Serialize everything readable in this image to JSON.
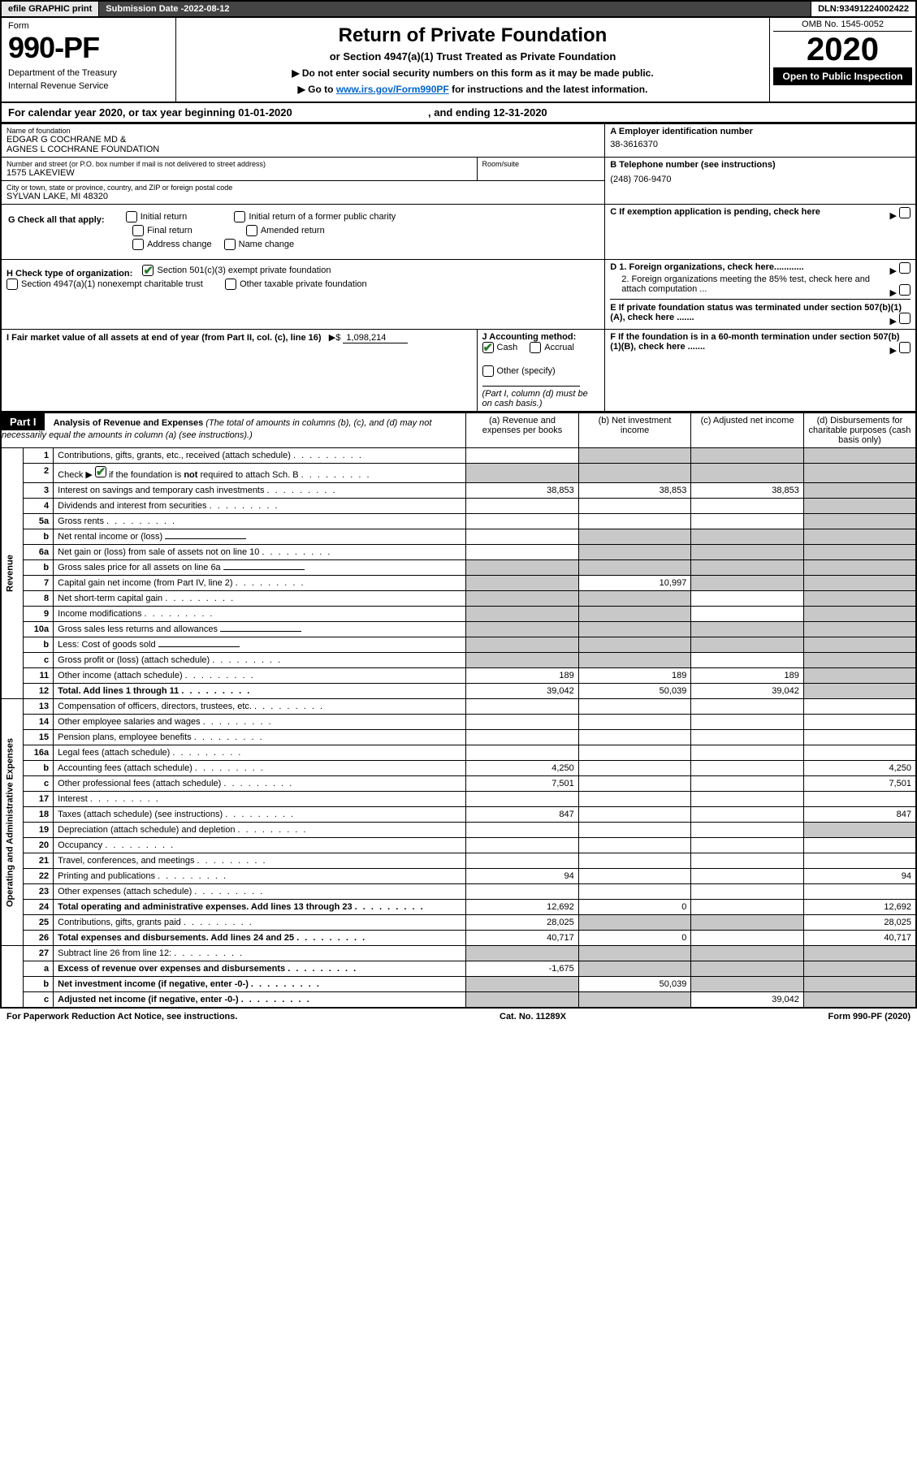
{
  "topbar": {
    "efile": "efile GRAPHIC print",
    "submission_label": "Submission Date - ",
    "submission_date": "2022-08-12",
    "dln_label": "DLN: ",
    "dln": "93491224002422"
  },
  "header": {
    "form_label": "Form",
    "form_number": "990-PF",
    "dept1": "Department of the Treasury",
    "dept2": "Internal Revenue Service",
    "title": "Return of Private Foundation",
    "subtitle": "or Section 4947(a)(1) Trust Treated as Private Foundation",
    "instr1": "▶ Do not enter social security numbers on this form as it may be made public.",
    "instr2_pre": "▶ Go to ",
    "instr2_link": "www.irs.gov/Form990PF",
    "instr2_post": " for instructions and the latest information.",
    "omb": "OMB No. 1545-0052",
    "year": "2020",
    "open_public": "Open to Public Inspection"
  },
  "cal_year": {
    "prefix": "For calendar year 2020, or tax year beginning ",
    "begin": "01-01-2020",
    "mid": " , and ending ",
    "end": "12-31-2020"
  },
  "entity": {
    "name_label": "Name of foundation",
    "name1": "EDGAR G COCHRANE MD &",
    "name2": "AGNES L COCHRANE FOUNDATION",
    "addr_label": "Number and street (or P.O. box number if mail is not delivered to street address)",
    "addr": "1575 LAKEVIEW",
    "room_label": "Room/suite",
    "city_label": "City or town, state or province, country, and ZIP or foreign postal code",
    "city": "SYLVAN LAKE, MI  48320",
    "ein_label": "A Employer identification number",
    "ein": "38-3616370",
    "phone_label": "B Telephone number (see instructions)",
    "phone": "(248) 706-9470",
    "c_label": "C If exemption application is pending, check here"
  },
  "checks": {
    "g_label": "G Check all that apply:",
    "g_items": [
      "Initial return",
      "Final return",
      "Address change",
      "Initial return of a former public charity",
      "Amended return",
      "Name change"
    ],
    "h_label": "H Check type of organization:",
    "h_501c3": "Section 501(c)(3) exempt private foundation",
    "h_4947": "Section 4947(a)(1) nonexempt charitable trust",
    "h_other_tax": "Other taxable private foundation",
    "i_label": "I Fair market value of all assets at end of year (from Part II, col. (c), line 16)",
    "i_value": "1,098,214",
    "j_label": "J Accounting method:",
    "j_cash": "Cash",
    "j_accrual": "Accrual",
    "j_other": "Other (specify)",
    "j_note": "(Part I, column (d) must be on cash basis.)",
    "d1": "D 1. Foreign organizations, check here............",
    "d2": "2. Foreign organizations meeting the 85% test, check here and attach computation ...",
    "e": "E  If private foundation status was terminated under section 507(b)(1)(A), check here .......",
    "f": "F  If the foundation is in a 60-month termination under section 507(b)(1)(B), check here .......",
    "arrow": "▶"
  },
  "part1": {
    "label": "Part I",
    "title": "Analysis of Revenue and Expenses",
    "title_note": " (The total of amounts in columns (b), (c), and (d) may not necessarily equal the amounts in column (a) (see instructions).)",
    "col_a": "(a)  Revenue and expenses per books",
    "col_b": "(b)  Net investment income",
    "col_c": "(c)  Adjusted net income",
    "col_d": "(d)  Disbursements for charitable purposes (cash basis only)"
  },
  "sections": {
    "revenue": "Revenue",
    "opex": "Operating and Administrative Expenses"
  },
  "rows": [
    {
      "n": "1",
      "desc": "Contributions, gifts, grants, etc., received (attach schedule)",
      "a": "",
      "b": "shaded",
      "c": "shaded",
      "d": "shaded"
    },
    {
      "n": "2",
      "desc": "Check ▶ [x] if the foundation is not required to attach Sch. B",
      "a": "shaded",
      "b": "shaded",
      "c": "shaded",
      "d": "shaded",
      "hascheck": true
    },
    {
      "n": "3",
      "desc": "Interest on savings and temporary cash investments",
      "a": "38,853",
      "b": "38,853",
      "c": "38,853",
      "d": "shaded"
    },
    {
      "n": "4",
      "desc": "Dividends and interest from securities",
      "a": "",
      "b": "",
      "c": "",
      "d": "shaded"
    },
    {
      "n": "5a",
      "desc": "Gross rents",
      "a": "",
      "b": "",
      "c": "",
      "d": "shaded"
    },
    {
      "n": "b",
      "desc": "Net rental income or (loss)",
      "a": "",
      "b": "shaded",
      "c": "shaded",
      "d": "shaded",
      "inline_field": true
    },
    {
      "n": "6a",
      "desc": "Net gain or (loss) from sale of assets not on line 10",
      "a": "",
      "b": "shaded",
      "c": "shaded",
      "d": "shaded"
    },
    {
      "n": "b",
      "desc": "Gross sales price for all assets on line 6a",
      "a": "shaded",
      "b": "shaded",
      "c": "shaded",
      "d": "shaded",
      "inline_field": true
    },
    {
      "n": "7",
      "desc": "Capital gain net income (from Part IV, line 2)",
      "a": "shaded",
      "b": "10,997",
      "c": "shaded",
      "d": "shaded"
    },
    {
      "n": "8",
      "desc": "Net short-term capital gain",
      "a": "shaded",
      "b": "shaded",
      "c": "",
      "d": "shaded"
    },
    {
      "n": "9",
      "desc": "Income modifications",
      "a": "shaded",
      "b": "shaded",
      "c": "",
      "d": "shaded"
    },
    {
      "n": "10a",
      "desc": "Gross sales less returns and allowances",
      "a": "shaded",
      "b": "shaded",
      "c": "shaded",
      "d": "shaded",
      "inline_field": true
    },
    {
      "n": "b",
      "desc": "Less: Cost of goods sold",
      "a": "shaded",
      "b": "shaded",
      "c": "shaded",
      "d": "shaded",
      "inline_field": true
    },
    {
      "n": "c",
      "desc": "Gross profit or (loss) (attach schedule)",
      "a": "shaded",
      "b": "shaded",
      "c": "",
      "d": "shaded"
    },
    {
      "n": "11",
      "desc": "Other income (attach schedule)",
      "a": "189",
      "b": "189",
      "c": "189",
      "d": "shaded"
    },
    {
      "n": "12",
      "desc": "Total. Add lines 1 through 11",
      "a": "39,042",
      "b": "50,039",
      "c": "39,042",
      "d": "shaded",
      "bold": true
    }
  ],
  "rows2": [
    {
      "n": "13",
      "desc": "Compensation of officers, directors, trustees, etc.",
      "a": "",
      "b": "",
      "c": "",
      "d": ""
    },
    {
      "n": "14",
      "desc": "Other employee salaries and wages",
      "a": "",
      "b": "",
      "c": "",
      "d": ""
    },
    {
      "n": "15",
      "desc": "Pension plans, employee benefits",
      "a": "",
      "b": "",
      "c": "",
      "d": ""
    },
    {
      "n": "16a",
      "desc": "Legal fees (attach schedule)",
      "a": "",
      "b": "",
      "c": "",
      "d": ""
    },
    {
      "n": "b",
      "desc": "Accounting fees (attach schedule)",
      "a": "4,250",
      "b": "",
      "c": "",
      "d": "4,250"
    },
    {
      "n": "c",
      "desc": "Other professional fees (attach schedule)",
      "a": "7,501",
      "b": "",
      "c": "",
      "d": "7,501"
    },
    {
      "n": "17",
      "desc": "Interest",
      "a": "",
      "b": "",
      "c": "",
      "d": ""
    },
    {
      "n": "18",
      "desc": "Taxes (attach schedule) (see instructions)",
      "a": "847",
      "b": "",
      "c": "",
      "d": "847"
    },
    {
      "n": "19",
      "desc": "Depreciation (attach schedule) and depletion",
      "a": "",
      "b": "",
      "c": "",
      "d": "shaded"
    },
    {
      "n": "20",
      "desc": "Occupancy",
      "a": "",
      "b": "",
      "c": "",
      "d": ""
    },
    {
      "n": "21",
      "desc": "Travel, conferences, and meetings",
      "a": "",
      "b": "",
      "c": "",
      "d": ""
    },
    {
      "n": "22",
      "desc": "Printing and publications",
      "a": "94",
      "b": "",
      "c": "",
      "d": "94"
    },
    {
      "n": "23",
      "desc": "Other expenses (attach schedule)",
      "a": "",
      "b": "",
      "c": "",
      "d": ""
    },
    {
      "n": "24",
      "desc": "Total operating and administrative expenses. Add lines 13 through 23",
      "a": "12,692",
      "b": "0",
      "c": "",
      "d": "12,692",
      "bold": true
    },
    {
      "n": "25",
      "desc": "Contributions, gifts, grants paid",
      "a": "28,025",
      "b": "shaded",
      "c": "shaded",
      "d": "28,025"
    },
    {
      "n": "26",
      "desc": "Total expenses and disbursements. Add lines 24 and 25",
      "a": "40,717",
      "b": "0",
      "c": "",
      "d": "40,717",
      "bold": true
    }
  ],
  "rows3": [
    {
      "n": "27",
      "desc": "Subtract line 26 from line 12:",
      "a": "shaded",
      "b": "shaded",
      "c": "shaded",
      "d": "shaded"
    },
    {
      "n": "a",
      "desc": "Excess of revenue over expenses and disbursements",
      "a": "-1,675",
      "b": "shaded",
      "c": "shaded",
      "d": "shaded",
      "bold": true
    },
    {
      "n": "b",
      "desc": "Net investment income (if negative, enter -0-)",
      "a": "shaded",
      "b": "50,039",
      "c": "shaded",
      "d": "shaded",
      "bold": true
    },
    {
      "n": "c",
      "desc": "Adjusted net income (if negative, enter -0-)",
      "a": "shaded",
      "b": "shaded",
      "c": "39,042",
      "d": "shaded",
      "bold": true
    }
  ],
  "footer": {
    "left": "For Paperwork Reduction Act Notice, see instructions.",
    "mid": "Cat. No. 11289X",
    "right": "Form 990-PF (2020)"
  }
}
